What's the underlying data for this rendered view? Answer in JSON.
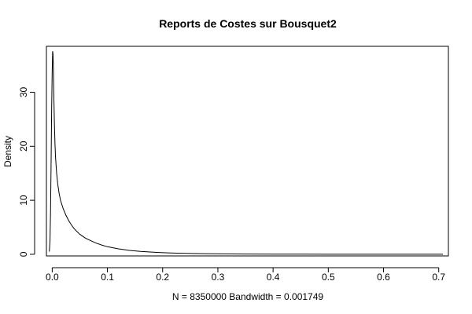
{
  "chart_data": {
    "type": "line",
    "title": "Reports de Costes sur Bousquet2",
    "xlabel": "N = 8350000   Bandwidth = 0.001749",
    "ylabel": "Density",
    "xlim": [
      -0.0105,
      0.7175
    ],
    "ylim": [
      -0.3,
      38.5
    ],
    "x_ticks": [
      0.0,
      0.1,
      0.2,
      0.3,
      0.4,
      0.5,
      0.6,
      0.7
    ],
    "x_tick_labels": [
      "0.0",
      "0.1",
      "0.2",
      "0.3",
      "0.4",
      "0.5",
      "0.6",
      "0.7"
    ],
    "y_ticks": [
      0,
      10,
      20,
      30
    ],
    "y_tick_labels": [
      "0",
      "10",
      "20",
      "30"
    ],
    "grid": false,
    "series": [
      {
        "name": "density",
        "x": [
          -0.0052,
          -0.004,
          -0.003,
          -0.002,
          -0.001,
          0.0,
          0.0008,
          0.0015,
          0.0022,
          0.003,
          0.004,
          0.005,
          0.006,
          0.008,
          0.01,
          0.0125,
          0.015,
          0.02,
          0.025,
          0.03,
          0.035,
          0.04,
          0.05,
          0.06,
          0.07,
          0.08,
          0.09,
          0.1,
          0.12,
          0.14,
          0.16,
          0.18,
          0.2,
          0.22,
          0.25,
          0.28,
          0.3,
          0.35,
          0.4,
          0.45,
          0.5,
          0.55,
          0.6,
          0.65,
          0.7,
          0.7075
        ],
        "y": [
          0.5,
          2.5,
          8.0,
          17.0,
          27.0,
          34.0,
          37.6,
          37.0,
          34.0,
          29.0,
          24.0,
          20.5,
          18.0,
          15.0,
          13.0,
          11.3,
          10.0,
          8.4,
          7.2,
          6.2,
          5.4,
          4.7,
          3.7,
          3.0,
          2.5,
          2.05,
          1.7,
          1.4,
          1.0,
          0.72,
          0.53,
          0.4,
          0.3,
          0.23,
          0.15,
          0.1,
          0.08,
          0.045,
          0.028,
          0.018,
          0.012,
          0.009,
          0.007,
          0.005,
          0.004,
          0.004
        ]
      }
    ]
  }
}
